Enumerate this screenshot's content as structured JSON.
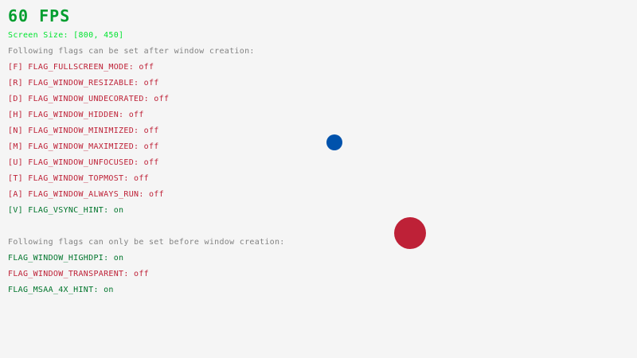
{
  "fps": "60 FPS",
  "screen_size": "Screen Size: [800, 450]",
  "after_heading": "Following flags can be set after window creation:",
  "after_flags": [
    {
      "label": "[F] FLAG_FULLSCREEN_MODE: ",
      "value": "off"
    },
    {
      "label": "[R] FLAG_WINDOW_RESIZABLE: ",
      "value": "off"
    },
    {
      "label": "[D] FLAG_WINDOW_UNDECORATED: ",
      "value": "off"
    },
    {
      "label": "[H] FLAG_WINDOW_HIDDEN: ",
      "value": "off"
    },
    {
      "label": "[N] FLAG_WINDOW_MINIMIZED: ",
      "value": "off"
    },
    {
      "label": "[M] FLAG_WINDOW_MAXIMIZED: ",
      "value": "off"
    },
    {
      "label": "[U] FLAG_WINDOW_UNFOCUSED: ",
      "value": "off"
    },
    {
      "label": "[T] FLAG_WINDOW_TOPMOST: ",
      "value": "off"
    },
    {
      "label": "[A] FLAG_WINDOW_ALWAYS_RUN: ",
      "value": "off"
    },
    {
      "label": "[V] FLAG_VSYNC_HINT: ",
      "value": "on"
    }
  ],
  "before_heading": "Following flags can only be set before window creation:",
  "before_flags": [
    {
      "label": "FLAG_WINDOW_HIGHDPI: ",
      "value": "on"
    },
    {
      "label": "FLAG_WINDOW_TRANSPARENT: ",
      "value": "off"
    },
    {
      "label": "FLAG_MSAA_4X_HINT: ",
      "value": "on"
    }
  ],
  "colors": {
    "background": "#f5f5f5",
    "on": "#00752c",
    "off": "#be2137",
    "blue_ball": "#0052ac",
    "red_ball": "#be2137"
  }
}
